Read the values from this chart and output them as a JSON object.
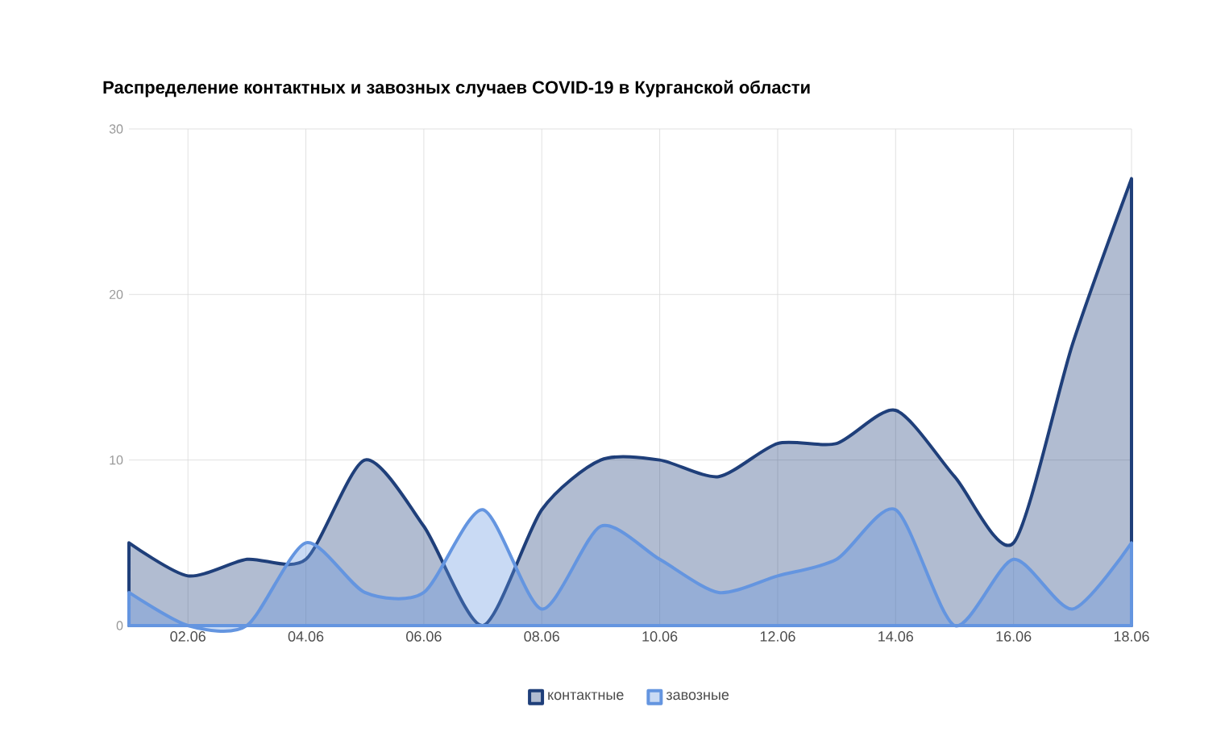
{
  "chart_data": {
    "type": "area",
    "title": "Распределение контактных и завозных случаев COVID-19 в Курганской области",
    "categories": [
      null,
      "02.06",
      null,
      "04.06",
      null,
      "06.06",
      null,
      "08.06",
      null,
      "10.06",
      null,
      "12.06",
      null,
      "14.06",
      null,
      "16.06",
      null,
      "18.06"
    ],
    "series": [
      {
        "name": "контактные",
        "color": "#1f3f7a",
        "values": [
          5,
          3,
          4,
          4,
          10,
          6,
          0,
          7,
          10,
          10,
          9,
          11,
          11,
          13,
          9,
          5,
          17,
          27
        ]
      },
      {
        "name": "завозные",
        "color": "#6495e0",
        "values": [
          2,
          0,
          0,
          5,
          2,
          2,
          7,
          1,
          6,
          4,
          2,
          3,
          4,
          7,
          0,
          4,
          1,
          5
        ]
      }
    ],
    "ylim": [
      0,
      30
    ],
    "yticks": [
      0,
      10,
      20,
      30
    ],
    "grid": true,
    "legend": "bottom"
  }
}
